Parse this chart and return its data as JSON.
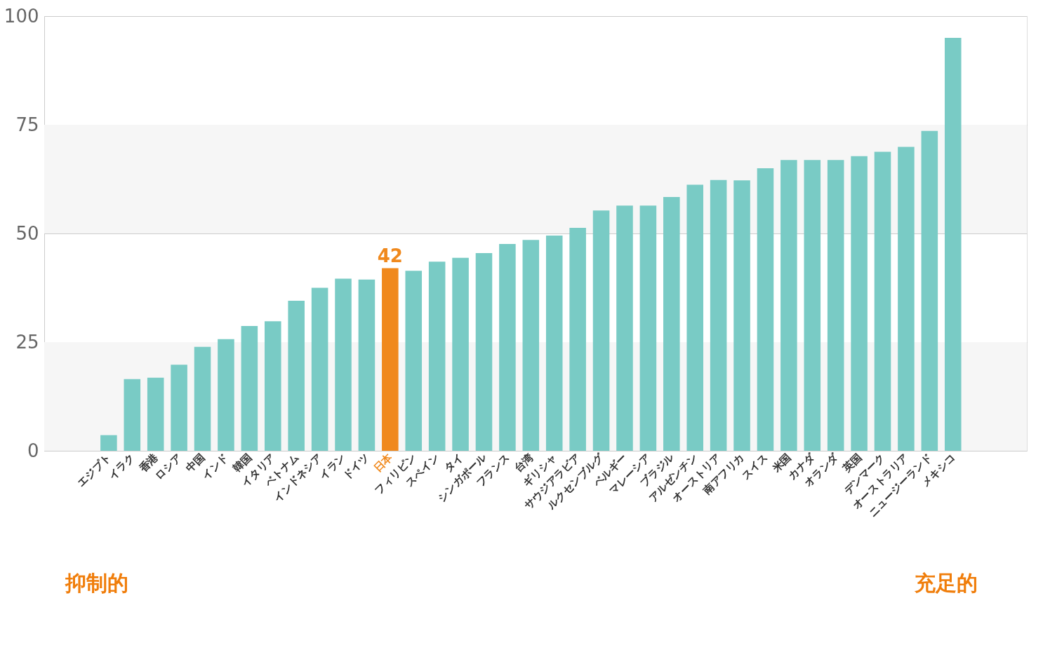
{
  "chart_data": {
    "type": "bar",
    "categories": [
      "エジプト",
      "イラク",
      "香港",
      "ロシア",
      "中国",
      "インド",
      "韓国",
      "イタリア",
      "ベトナム",
      "インドネシア",
      "イラン",
      "ドイツ",
      "日本",
      "フィリピン",
      "スペイン",
      "タイ",
      "シンガポール",
      "フランス",
      "台湾",
      "ギリシャ",
      "サウジアラビア",
      "ルクセンブルグ",
      "ベルギー",
      "マレーシア",
      "ブラジル",
      "アルゼンチン",
      "オーストリア",
      "南アフリカ",
      "スイス",
      "米国",
      "カナダ",
      "オランダ",
      "英国",
      "デンマーク",
      "オーストラリア",
      "ニュージーランド",
      "メキシコ"
    ],
    "values": [
      3.6,
      16.5,
      16.8,
      19.8,
      23.9,
      25.7,
      28.7,
      29.8,
      34.5,
      37.5,
      39.6,
      39.4,
      42,
      41.4,
      43.5,
      44.4,
      45.5,
      47.6,
      48.5,
      49.5,
      51.3,
      55.3,
      56.4,
      56.4,
      58.4,
      61.2,
      62.3,
      62.2,
      65.0,
      66.9,
      66.9,
      66.9,
      67.8,
      68.8,
      69.9,
      73.6,
      95.0
    ],
    "colors": [
      "#79cbc5",
      "#79cbc5",
      "#79cbc5",
      "#79cbc5",
      "#79cbc5",
      "#79cbc5",
      "#79cbc5",
      "#79cbc5",
      "#79cbc5",
      "#79cbc5",
      "#79cbc5",
      "#79cbc5",
      "#f0891d",
      "#79cbc5",
      "#79cbc5",
      "#79cbc5",
      "#79cbc5",
      "#79cbc5",
      "#79cbc5",
      "#79cbc5",
      "#79cbc5",
      "#79cbc5",
      "#79cbc5",
      "#79cbc5",
      "#79cbc5",
      "#79cbc5",
      "#79cbc5",
      "#79cbc5",
      "#79cbc5",
      "#79cbc5",
      "#79cbc5",
      "#79cbc5",
      "#79cbc5",
      "#79cbc5",
      "#79cbc5",
      "#79cbc5",
      "#79cbc5"
    ],
    "value_labels": [
      null,
      null,
      null,
      null,
      null,
      null,
      null,
      null,
      null,
      null,
      null,
      null,
      "42",
      null,
      null,
      null,
      null,
      null,
      null,
      null,
      null,
      null,
      null,
      null,
      null,
      null,
      null,
      null,
      null,
      null,
      null,
      null,
      null,
      null,
      null,
      null,
      null
    ],
    "ylim": [
      0,
      100
    ],
    "yticks": [
      0,
      25,
      50,
      75,
      100
    ],
    "grid": "y",
    "bands": [
      {
        "axis": "y",
        "from": 0,
        "to": 25,
        "color": "#f6f6f6"
      },
      {
        "axis": "y",
        "from": 50,
        "to": 75,
        "color": "#f6f6f6"
      }
    ],
    "annotations": [
      "抑制的",
      "充足的"
    ]
  }
}
